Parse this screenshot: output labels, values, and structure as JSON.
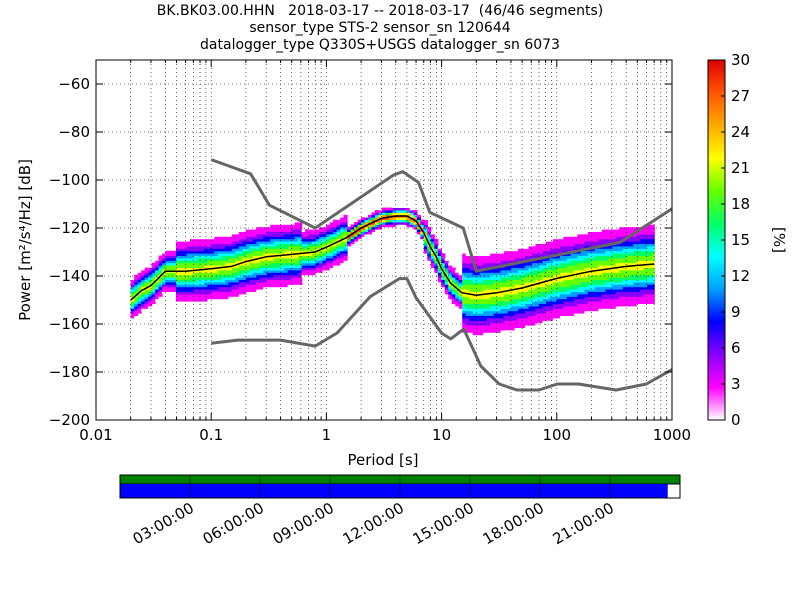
{
  "title": {
    "line1": "BK.BK03.00.HHN   2018-03-17 -- 2018-03-17  (46/46 segments)",
    "line2": "sensor_type STS-2 sensor_sn 120644",
    "line3": "datalogger_type Q330S+USGS datalogger_sn 6073"
  },
  "chart_data": {
    "type": "heatmap",
    "subtype": "probabilistic power spectral density",
    "xlabel": "Period [s]",
    "ylabel": "Power [m²/s⁴/Hz] [dB]",
    "xscale": "log",
    "xlim": [
      0.01,
      1000
    ],
    "ylim": [
      -200,
      -50
    ],
    "xticks": [
      {
        "value": 0.01,
        "label": "0.01"
      },
      {
        "value": 0.1,
        "label": "0.1"
      },
      {
        "value": 1,
        "label": "1"
      },
      {
        "value": 10,
        "label": "10"
      },
      {
        "value": 100,
        "label": "100"
      },
      {
        "value": 1000,
        "label": "1000"
      }
    ],
    "yticks": [
      {
        "value": -60,
        "label": "−60"
      },
      {
        "value": -80,
        "label": "−80"
      },
      {
        "value": -100,
        "label": "−100"
      },
      {
        "value": -120,
        "label": "−120"
      },
      {
        "value": -140,
        "label": "−140"
      },
      {
        "value": -160,
        "label": "−160"
      },
      {
        "value": -180,
        "label": "−180"
      },
      {
        "value": -200,
        "label": "−200"
      }
    ],
    "grid": true,
    "colorbar": {
      "label": "[%]",
      "range": [
        0,
        30
      ],
      "ticks": [
        "0",
        "3",
        "6",
        "9",
        "12",
        "15",
        "18",
        "21",
        "24",
        "27",
        "30"
      ],
      "colors": [
        "#ffffff",
        "#ff00ff",
        "#8800ff",
        "#0000ff",
        "#00a0ff",
        "#00ffff",
        "#00ff66",
        "#66ff00",
        "#ffff00",
        "#ffaa00",
        "#ff5500",
        "#dd0000"
      ]
    },
    "noise_models": {
      "color": "#666666",
      "high": {
        "period": [
          0.1,
          0.22,
          0.32,
          0.8,
          3.8,
          4.6,
          6.3,
          7.9,
          15.4,
          20,
          354.8,
          1000
        ],
        "power": [
          -91.5,
          -97.4,
          -110.5,
          -120,
          -98,
          -96.5,
          -101,
          -113.5,
          -120,
          -138,
          -126,
          -112
        ]
      },
      "low": {
        "period": [
          0.1,
          0.17,
          0.4,
          0.8,
          1.24,
          2.4,
          4.3,
          5,
          6,
          10,
          12,
          15.6,
          21.9,
          31.6,
          45,
          70,
          101,
          154,
          328,
          600,
          1000
        ],
        "power": [
          -168,
          -166.7,
          -166.7,
          -169.2,
          -163.7,
          -148.6,
          -141.1,
          -141.1,
          -149,
          -163.8,
          -166.2,
          -162.1,
          -177.5,
          -185,
          -187.5,
          -187.5,
          -185,
          -185,
          -187.5,
          -185,
          -179
        ]
      }
    },
    "mode_curve": {
      "color": "#000000",
      "period": [
        0.02,
        0.025,
        0.03,
        0.04,
        0.06,
        0.1,
        0.15,
        0.2,
        0.3,
        0.5,
        0.8,
        1.0,
        1.5,
        2.0,
        3.0,
        4.0,
        5.0,
        6.0,
        7.0,
        8.0,
        9.0,
        10.0,
        12.0,
        15.0,
        20.0,
        30.0,
        50.0,
        100.0,
        200.0,
        400.0,
        700.0
      ],
      "power": [
        -150,
        -146,
        -144,
        -138,
        -138,
        -137,
        -136,
        -134,
        -132,
        -131,
        -130,
        -128,
        -124,
        -120,
        -116,
        -115,
        -115,
        -117,
        -122,
        -128,
        -132,
        -137,
        -143,
        -147,
        -148,
        -147,
        -145,
        -141,
        -138,
        -136,
        -135
      ]
    },
    "data_availability": {
      "time_ticks": [
        "03:00:00",
        "06:00:00",
        "09:00:00",
        "12:00:00",
        "15:00:00",
        "18:00:00",
        "21:00:00"
      ],
      "coverage_fraction": 0.978,
      "segment_color": "#008000",
      "data_color": "#0000ff"
    }
  }
}
